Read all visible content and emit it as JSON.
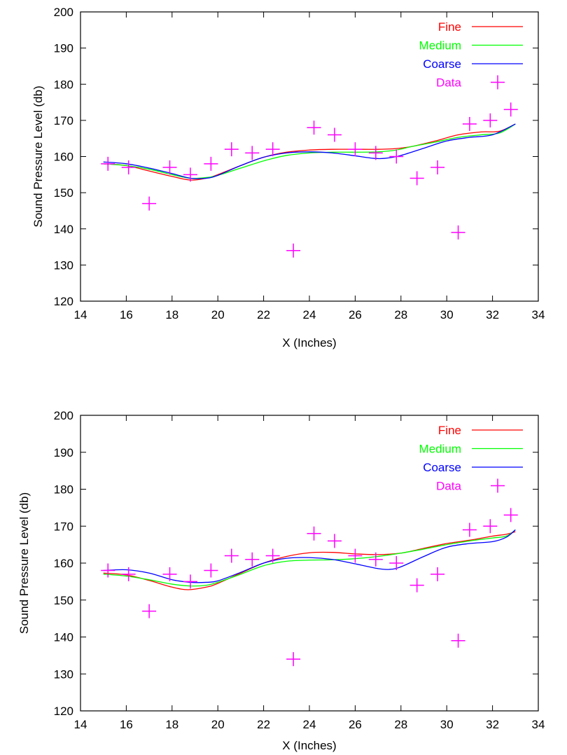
{
  "chart_data": [
    {
      "type": "line",
      "xlabel": "X (Inches)",
      "ylabel": "Sound Pressure Level (db)",
      "xlim": [
        14,
        34
      ],
      "ylim": [
        120,
        200
      ],
      "xticks": [
        14,
        16,
        18,
        20,
        22,
        24,
        26,
        28,
        30,
        32,
        34
      ],
      "yticks": [
        120,
        130,
        140,
        150,
        160,
        170,
        180,
        190,
        200
      ],
      "grid": false,
      "legend_position": "top-right",
      "series": [
        {
          "name": "Fine",
          "color": "#ff0000",
          "style": "line",
          "x": [
            15,
            16,
            17,
            18,
            18.8,
            19.5,
            20,
            21,
            22,
            23,
            24,
            25,
            26,
            27,
            27.8,
            28.5,
            29.5,
            30.5,
            31.5,
            32.3,
            33
          ],
          "y": [
            158,
            157.5,
            156,
            154.5,
            153.5,
            154,
            155,
            157.5,
            159.8,
            161.2,
            161.8,
            162,
            162,
            162,
            162.2,
            162.8,
            164.3,
            166,
            166.8,
            167,
            169
          ]
        },
        {
          "name": "Medium",
          "color": "#00ff00",
          "style": "line",
          "x": [
            15,
            16,
            17,
            18,
            18.8,
            19.5,
            20,
            21,
            22,
            23,
            24,
            25,
            26,
            27,
            27.8,
            28.5,
            29.5,
            30.5,
            31.5,
            32.3,
            33
          ],
          "y": [
            158,
            157.5,
            156.5,
            155,
            154,
            154.2,
            154.8,
            156.8,
            158.8,
            160.3,
            161,
            161.2,
            161.2,
            161.3,
            161.8,
            162.8,
            164,
            165.3,
            166,
            166.5,
            169
          ]
        },
        {
          "name": "Coarse",
          "color": "#0000ff",
          "style": "line",
          "x": [
            15,
            16,
            17,
            18,
            18.8,
            19.5,
            20,
            21,
            22,
            23,
            24,
            25,
            26,
            26.8,
            27.3,
            28,
            29,
            30,
            31,
            32,
            33
          ],
          "y": [
            158.5,
            158,
            156.8,
            155.3,
            154,
            154,
            154.8,
            157.5,
            159.8,
            161,
            161.3,
            161,
            160.2,
            159.5,
            159.5,
            160.3,
            162.3,
            164.3,
            165.3,
            166,
            169
          ]
        },
        {
          "name": "Data",
          "color": "#ff00ff",
          "style": "points",
          "x": [
            15.2,
            16.1,
            17,
            17.9,
            18.8,
            19.7,
            20.6,
            21.5,
            22.4,
            23.3,
            24.2,
            25.1,
            26,
            26.9,
            27.8,
            28.7,
            29.6,
            30.5,
            31,
            31.9,
            32.8
          ],
          "y": [
            158,
            157,
            147,
            157,
            155,
            158,
            162,
            161,
            162,
            134,
            168,
            166,
            162,
            161,
            160,
            154,
            157,
            139,
            169,
            170,
            173
          ]
        }
      ]
    },
    {
      "type": "line",
      "xlabel": "X (Inches)",
      "ylabel": "Sound Pressure Level (db)",
      "xlim": [
        14,
        34
      ],
      "ylim": [
        120,
        200
      ],
      "xticks": [
        14,
        16,
        18,
        20,
        22,
        24,
        26,
        28,
        30,
        32,
        34
      ],
      "yticks": [
        120,
        130,
        140,
        150,
        160,
        170,
        180,
        190,
        200
      ],
      "grid": false,
      "legend_position": "top-right",
      "series": [
        {
          "name": "Fine",
          "color": "#ff0000",
          "style": "line",
          "x": [
            15,
            16,
            17,
            18,
            18.7,
            19.5,
            20,
            21,
            22,
            23,
            24,
            25,
            26,
            27,
            28,
            29,
            30,
            31,
            32,
            32.6,
            33
          ],
          "y": [
            157.3,
            156.8,
            155.3,
            153.5,
            152.8,
            153.5,
            154.5,
            157.3,
            160,
            161.8,
            162.8,
            162.9,
            162.5,
            162.3,
            162.7,
            164,
            165.3,
            166.2,
            167.3,
            167.8,
            168.5
          ]
        },
        {
          "name": "Medium",
          "color": "#00ff00",
          "style": "line",
          "x": [
            15,
            16,
            17,
            18,
            18.8,
            19.5,
            20,
            21,
            22,
            23,
            24,
            25,
            26,
            27,
            28,
            29,
            30,
            31,
            32,
            32.6,
            33
          ],
          "y": [
            157,
            156.5,
            155.5,
            154.3,
            153.8,
            154,
            154.8,
            157,
            159.3,
            160.5,
            160.8,
            160.9,
            161.2,
            161.8,
            162.7,
            163.8,
            165,
            166,
            166.8,
            167.3,
            169
          ]
        },
        {
          "name": "Coarse",
          "color": "#0000ff",
          "style": "line",
          "x": [
            15,
            16,
            17,
            18,
            18.8,
            19.5,
            20,
            21,
            22,
            23,
            24,
            25,
            26,
            27,
            27.5,
            28,
            29,
            30,
            31,
            32,
            32.6,
            33
          ],
          "y": [
            158,
            158.2,
            157.3,
            155.5,
            154.8,
            154.8,
            155.2,
            157.5,
            160,
            161.3,
            161.5,
            161,
            159.8,
            158.5,
            158.3,
            159,
            161.8,
            164.3,
            165.3,
            165.8,
            167,
            169
          ]
        },
        {
          "name": "Data",
          "color": "#ff00ff",
          "style": "points",
          "x": [
            15.2,
            16.1,
            17,
            17.9,
            18.8,
            19.7,
            20.6,
            21.5,
            22.4,
            23.3,
            24.2,
            25.1,
            26,
            26.9,
            27.8,
            28.7,
            29.6,
            30.5,
            31,
            31.9,
            32.8
          ],
          "y": [
            158,
            157,
            147,
            157,
            155,
            158,
            162,
            161,
            162,
            134,
            168,
            166,
            162,
            161,
            160,
            154,
            157,
            139,
            169,
            170,
            173
          ]
        }
      ]
    }
  ]
}
